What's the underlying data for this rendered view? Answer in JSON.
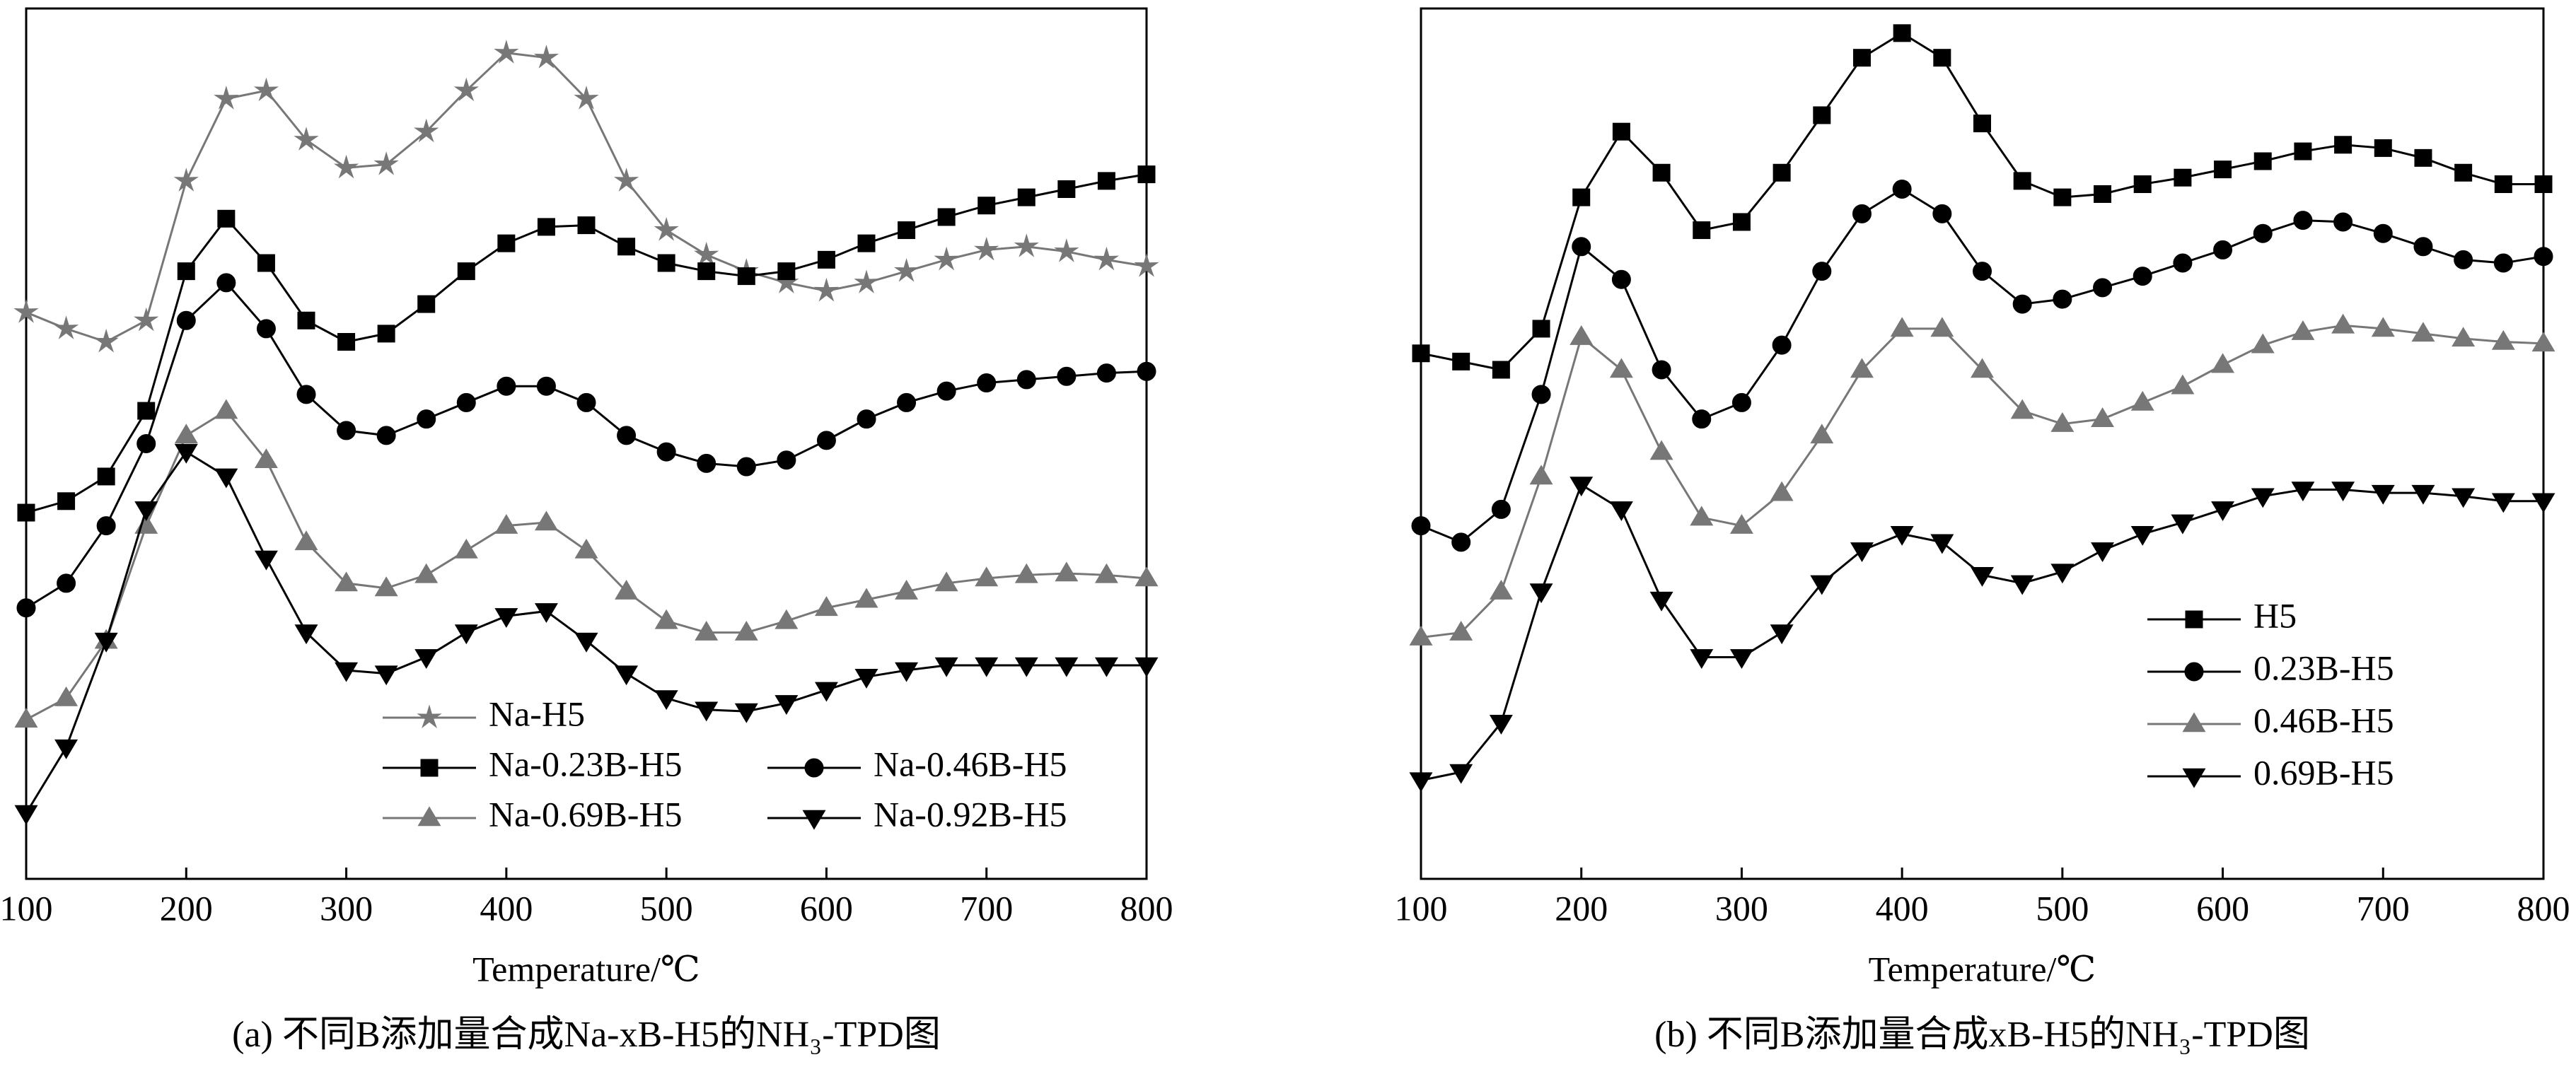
{
  "chart_data": [
    {
      "type": "line",
      "x_label": "Temperature/℃",
      "caption": "(a) 不同B添加量合成Na-xB-H5的NH₃-TPD图",
      "xlim": [
        100,
        800
      ],
      "xticks": [
        100,
        200,
        300,
        400,
        500,
        600,
        700,
        800
      ],
      "ylim": [
        0,
        530
      ],
      "legend": "lower center",
      "x": [
        100,
        125,
        150,
        175,
        200,
        225,
        250,
        275,
        300,
        325,
        350,
        375,
        400,
        425,
        450,
        475,
        500,
        525,
        550,
        575,
        600,
        625,
        650,
        675,
        700,
        725,
        750,
        775,
        800
      ],
      "series": [
        {
          "name": "Na-H5",
          "color": "#777777",
          "marker": "star",
          "values": [
            345,
            335,
            327,
            340,
            425,
            475,
            480,
            450,
            433,
            435,
            455,
            480,
            503,
            500,
            475,
            425,
            395,
            380,
            370,
            363,
            358,
            363,
            370,
            377,
            383,
            385,
            382,
            377,
            373
          ]
        },
        {
          "name": "Na-0.23B-H5",
          "color": "#000000",
          "marker": "square",
          "values": [
            223,
            230,
            245,
            285,
            370,
            402,
            375,
            340,
            327,
            332,
            350,
            370,
            387,
            397,
            398,
            385,
            375,
            370,
            367,
            370,
            377,
            387,
            395,
            403,
            410,
            415,
            420,
            425,
            429
          ]
        },
        {
          "name": "Na-0.46B-H5",
          "color": "#000000",
          "marker": "circle",
          "values": [
            165,
            180,
            215,
            265,
            340,
            363,
            335,
            295,
            273,
            270,
            280,
            290,
            300,
            300,
            290,
            270,
            260,
            253,
            251,
            255,
            267,
            280,
            290,
            297,
            302,
            304,
            306,
            308,
            309
          ]
        },
        {
          "name": "Na-0.69B-H5",
          "color": "#777777",
          "marker": "triangle-up",
          "values": [
            97,
            110,
            145,
            215,
            270,
            285,
            255,
            205,
            180,
            177,
            185,
            200,
            215,
            217,
            200,
            175,
            157,
            150,
            150,
            157,
            165,
            170,
            175,
            180,
            183,
            185,
            186,
            185,
            183
          ]
        },
        {
          "name": "Na-0.92B-H5",
          "color": "#000000",
          "marker": "triangle-down",
          "values": [
            40,
            80,
            145,
            225,
            260,
            245,
            195,
            150,
            127,
            125,
            135,
            150,
            160,
            163,
            145,
            125,
            110,
            103,
            102,
            107,
            115,
            123,
            127,
            130,
            130,
            130,
            130,
            130,
            130
          ]
        }
      ]
    },
    {
      "type": "line",
      "x_label": "Temperature/℃",
      "caption": "(b) 不同B添加量合成xB-H5的NH₃-TPD图",
      "xlim": [
        100,
        800
      ],
      "xticks": [
        100,
        200,
        300,
        400,
        500,
        600,
        700,
        800
      ],
      "ylim": [
        0,
        530
      ],
      "legend": "lower right",
      "x": [
        100,
        125,
        150,
        175,
        200,
        225,
        250,
        275,
        300,
        325,
        350,
        375,
        400,
        425,
        450,
        475,
        500,
        525,
        550,
        575,
        600,
        625,
        650,
        675,
        700,
        725,
        750,
        775,
        800
      ],
      "series": [
        {
          "name": "H5",
          "color": "#000000",
          "marker": "square",
          "values": [
            320,
            315,
            310,
            335,
            415,
            455,
            430,
            395,
            400,
            430,
            465,
            500,
            515,
            500,
            460,
            425,
            415,
            417,
            423,
            427,
            432,
            437,
            443,
            447,
            445,
            439,
            430,
            423,
            423
          ]
        },
        {
          "name": "0.23B-H5",
          "color": "#000000",
          "marker": "circle",
          "values": [
            215,
            205,
            225,
            295,
            385,
            365,
            310,
            280,
            290,
            325,
            370,
            405,
            420,
            405,
            370,
            350,
            353,
            360,
            367,
            375,
            383,
            393,
            401,
            400,
            393,
            385,
            377,
            375,
            379
          ]
        },
        {
          "name": "0.46B-H5",
          "color": "#777777",
          "marker": "triangle-up",
          "values": [
            147,
            150,
            175,
            245,
            330,
            310,
            260,
            220,
            215,
            235,
            270,
            310,
            335,
            335,
            310,
            285,
            277,
            280,
            290,
            300,
            313,
            325,
            333,
            337,
            335,
            332,
            329,
            327,
            326
          ]
        },
        {
          "name": "0.69B-H5",
          "color": "#000000",
          "marker": "triangle-down",
          "values": [
            60,
            65,
            95,
            175,
            240,
            225,
            170,
            135,
            135,
            150,
            180,
            200,
            210,
            205,
            185,
            180,
            187,
            200,
            210,
            217,
            225,
            233,
            237,
            237,
            235,
            235,
            233,
            230,
            230
          ]
        }
      ]
    }
  ]
}
